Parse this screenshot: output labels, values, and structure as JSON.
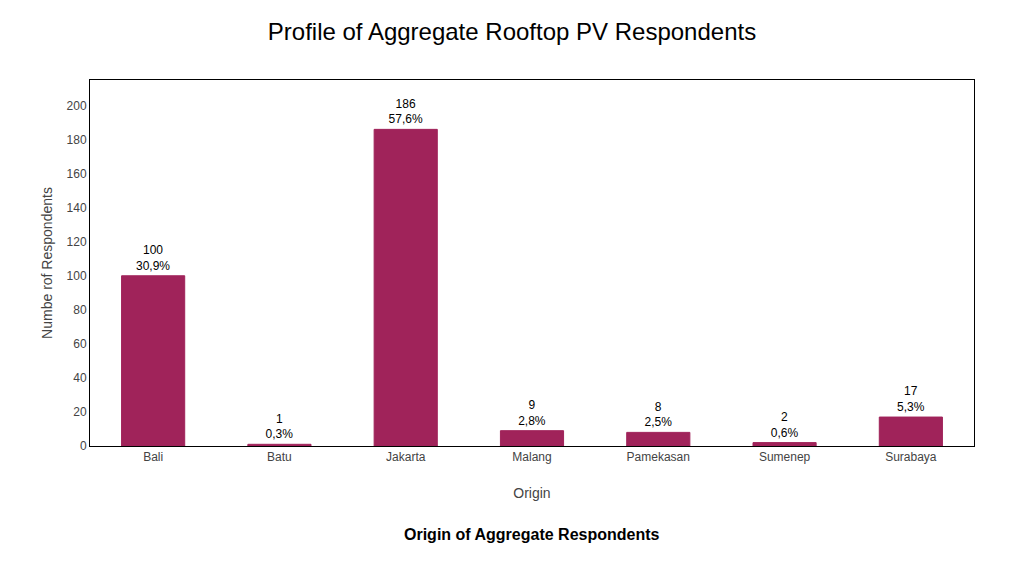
{
  "chart_data": {
    "type": "bar",
    "title": "Profile of Aggregate Rooftop PV Respondents",
    "subtitle": "Origin of Aggregate Respondents",
    "xlabel": "Origin",
    "ylabel": "Numbe rof Respondents",
    "categories": [
      "Bali",
      "Batu",
      "Jakarta",
      "Malang",
      "Pamekasan",
      "Sumenep",
      "Surabaya"
    ],
    "values": [
      100,
      1,
      186,
      9,
      8,
      2,
      17
    ],
    "percentages": [
      "30,9%",
      "0,3%",
      "57,6%",
      "2,8%",
      "2,5%",
      "0,6%",
      "5,3%"
    ],
    "color": "#A0235A",
    "ylim": [
      0,
      215
    ],
    "yticks": [
      0,
      20,
      40,
      60,
      80,
      100,
      120,
      140,
      160,
      180,
      200
    ],
    "grid": false,
    "data_labels": true
  }
}
